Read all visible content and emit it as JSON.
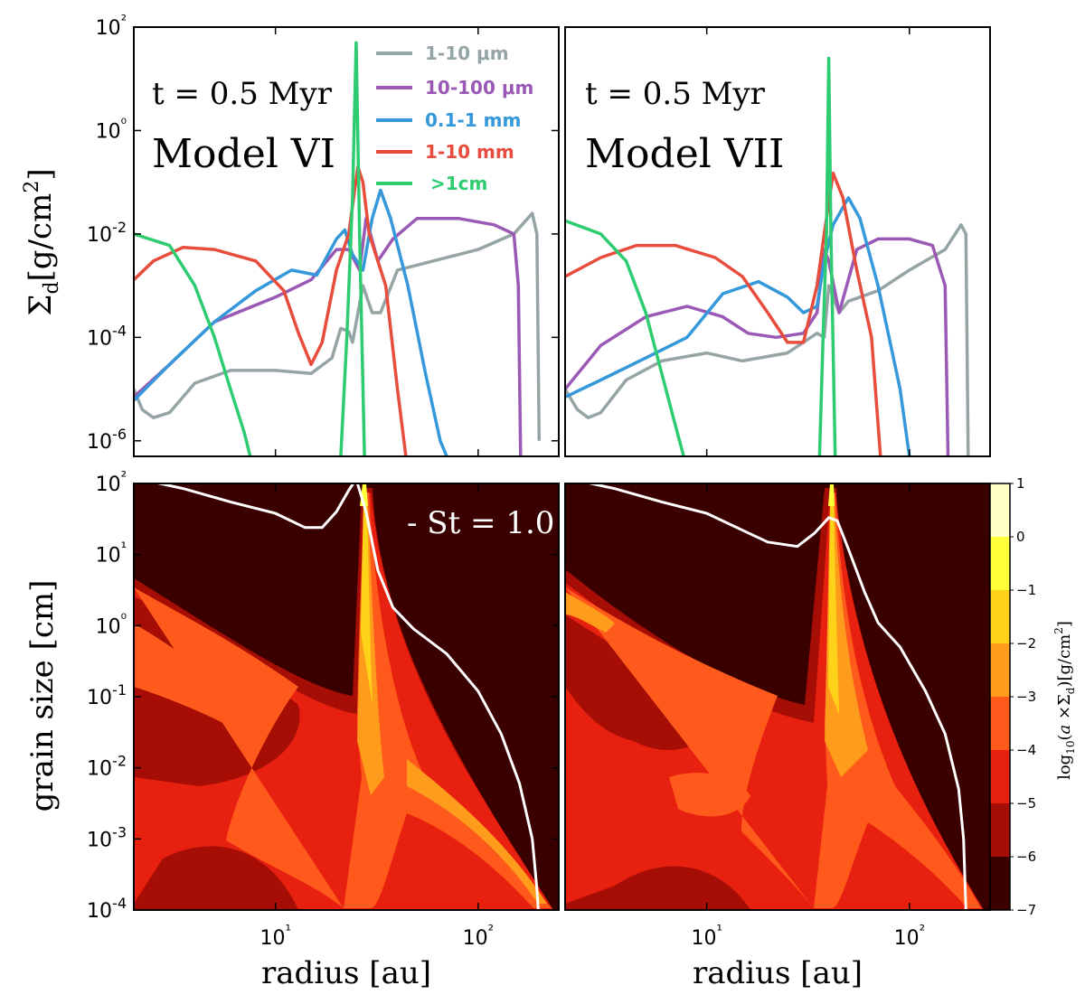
{
  "chart_data": [
    {
      "type": "line",
      "panel": "top-left",
      "annotation_time": "t = 0.5 Myr",
      "annotation_model": "Model VI",
      "ylabel": "Σd[g/cm²]",
      "x_scale": "log",
      "y_scale": "log",
      "xlim": [
        2,
        250
      ],
      "ylim": [
        5e-07,
        100
      ],
      "yticks": [
        "10²",
        "10⁰",
        "10-2",
        "10-4",
        "10-6"
      ],
      "legend": [
        {
          "label": "1-10 μm",
          "color": "#95a5a6"
        },
        {
          "label": "10-100 μm",
          "color": "#9b59b6"
        },
        {
          "label": "0.1-1 mm",
          "color": "#3498db"
        },
        {
          "label": "1-10 mm",
          "color": "#e74c3c"
        },
        {
          "label": ">1cm",
          "color": "#2ecc71"
        }
      ],
      "series": [
        {
          "name": "1-10 μm",
          "color": "#95a5a6",
          "points": [
            [
              2,
              1e-05
            ],
            [
              2.2,
              4e-06
            ],
            [
              2.5,
              2.8e-06
            ],
            [
              3,
              3.5e-06
            ],
            [
              4,
              1.3e-05
            ],
            [
              6,
              2.3e-05
            ],
            [
              10,
              2.3e-05
            ],
            [
              15,
              2e-05
            ],
            [
              19,
              4e-05
            ],
            [
              21,
              0.00015
            ],
            [
              23,
              0.00013
            ],
            [
              24,
              8e-05
            ],
            [
              27,
              0.001
            ],
            [
              30,
              0.0003
            ],
            [
              33,
              0.0003
            ],
            [
              40,
              0.002
            ],
            [
              60,
              0.003
            ],
            [
              100,
              0.005
            ],
            [
              150,
              0.01
            ],
            [
              185,
              0.025
            ],
            [
              195,
              0.01
            ],
            [
              200,
              1e-06
            ]
          ]
        },
        {
          "name": "10-100 μm",
          "color": "#9b59b6",
          "points": [
            [
              2,
              7e-06
            ],
            [
              3,
              3e-05
            ],
            [
              5,
              0.0002
            ],
            [
              10,
              0.0006
            ],
            [
              15,
              0.0013
            ],
            [
              20,
              0.005
            ],
            [
              23,
              0.005
            ],
            [
              26,
              0.002
            ],
            [
              28,
              0.02
            ],
            [
              32,
              0.003
            ],
            [
              38,
              0.008
            ],
            [
              50,
              0.02
            ],
            [
              80,
              0.02
            ],
            [
              120,
              0.015
            ],
            [
              150,
              0.01
            ],
            [
              158,
              0.001
            ],
            [
              162,
              5e-07
            ]
          ]
        },
        {
          "name": "0.1-1 mm",
          "color": "#3498db",
          "points": [
            [
              2,
              6e-06
            ],
            [
              3,
              3e-05
            ],
            [
              5,
              0.0002
            ],
            [
              8,
              0.0008
            ],
            [
              12,
              0.002
            ],
            [
              16,
              0.0016
            ],
            [
              20,
              0.008
            ],
            [
              22,
              0.012
            ],
            [
              24,
              0.004
            ],
            [
              27,
              0.002
            ],
            [
              30,
              0.02
            ],
            [
              33,
              0.07
            ],
            [
              37,
              0.02
            ],
            [
              45,
              0.001
            ],
            [
              55,
              2e-05
            ],
            [
              65,
              1e-06
            ],
            [
              70,
              5e-07
            ]
          ]
        },
        {
          "name": "1-10 mm",
          "color": "#e74c3c",
          "points": [
            [
              2,
              0.0013
            ],
            [
              2.5,
              0.003
            ],
            [
              3.5,
              0.0055
            ],
            [
              5,
              0.005
            ],
            [
              8,
              0.003
            ],
            [
              11,
              0.0008
            ],
            [
              13,
              0.00012
            ],
            [
              15,
              3e-05
            ],
            [
              17,
              8e-05
            ],
            [
              20,
              0.002
            ],
            [
              23,
              0.01
            ],
            [
              25.5,
              0.2
            ],
            [
              27,
              0.1
            ],
            [
              29,
              0.01
            ],
            [
              32,
              0.003
            ],
            [
              35,
              0.001
            ],
            [
              40,
              1e-05
            ],
            [
              44,
              5e-07
            ]
          ]
        },
        {
          "name": ">1cm",
          "color": "#2ecc71",
          "points": [
            [
              2,
              0.01
            ],
            [
              3,
              0.006
            ],
            [
              4,
              0.001
            ],
            [
              5,
              0.0001
            ],
            [
              6,
              1e-05
            ],
            [
              7,
              1.5e-06
            ],
            [
              7.5,
              5e-07
            ],
            null,
            [
              21,
              5e-07
            ],
            [
              22.5,
              0.0001
            ],
            [
              24,
              0.05
            ],
            [
              25,
              50
            ],
            [
              26,
              0.01
            ],
            [
              27.5,
              5e-07
            ]
          ]
        }
      ]
    },
    {
      "type": "line",
      "panel": "top-right",
      "annotation_time": "t = 0.5 Myr",
      "annotation_model": "Model VII",
      "x_scale": "log",
      "y_scale": "log",
      "xlim": [
        2,
        250
      ],
      "ylim": [
        5e-07,
        100
      ],
      "series": [
        {
          "name": "1-10 μm",
          "color": "#95a5a6",
          "points": [
            [
              2,
              1e-05
            ],
            [
              2.3,
              4e-06
            ],
            [
              2.6,
              2.8e-06
            ],
            [
              3,
              3.5e-06
            ],
            [
              4,
              1.5e-05
            ],
            [
              6,
              3.5e-05
            ],
            [
              10,
              5e-05
            ],
            [
              15,
              3.5e-05
            ],
            [
              25,
              5e-05
            ],
            [
              35,
              0.00012
            ],
            [
              38,
              0.0001
            ],
            [
              40,
              0.001
            ],
            [
              45,
              0.0003
            ],
            [
              50,
              0.0005
            ],
            [
              70,
              0.0008
            ],
            [
              100,
              0.002
            ],
            [
              150,
              0.005
            ],
            [
              180,
              0.015
            ],
            [
              190,
              0.01
            ],
            [
              195,
              5e-07
            ]
          ]
        },
        {
          "name": "10-100 μm",
          "color": "#9b59b6",
          "points": [
            [
              2,
              1e-05
            ],
            [
              3,
              7e-05
            ],
            [
              5,
              0.00025
            ],
            [
              8,
              0.0004
            ],
            [
              12,
              0.00025
            ],
            [
              16,
              0.00012
            ],
            [
              22,
              0.0001
            ],
            [
              30,
              0.00012
            ],
            [
              35,
              0.0003
            ],
            [
              38,
              0.005
            ],
            [
              40,
              0.003
            ],
            [
              45,
              0.0003
            ],
            [
              55,
              0.005
            ],
            [
              70,
              0.008
            ],
            [
              100,
              0.008
            ],
            [
              130,
              0.006
            ],
            [
              150,
              0.001
            ],
            [
              155,
              5e-07
            ]
          ]
        },
        {
          "name": "0.1-1 mm",
          "color": "#3498db",
          "points": [
            [
              2,
              7e-06
            ],
            [
              3,
              1.5e-05
            ],
            [
              5,
              4e-05
            ],
            [
              8,
              0.0001
            ],
            [
              12,
              0.0007
            ],
            [
              18,
              0.0012
            ],
            [
              25,
              0.0006
            ],
            [
              30,
              0.0003
            ],
            [
              35,
              0.0004
            ],
            [
              38,
              0.003
            ],
            [
              42,
              0.015
            ],
            [
              50,
              0.05
            ],
            [
              57,
              0.02
            ],
            [
              70,
              0.001
            ],
            [
              90,
              1e-05
            ],
            [
              100,
              5e-07
            ]
          ]
        },
        {
          "name": "1-10 mm",
          "color": "#e74c3c",
          "points": [
            [
              2,
              0.0015
            ],
            [
              3,
              0.0035
            ],
            [
              4.5,
              0.006
            ],
            [
              7,
              0.006
            ],
            [
              11,
              0.0035
            ],
            [
              15,
              0.0015
            ],
            [
              20,
              0.0003
            ],
            [
              25,
              8e-05
            ],
            [
              30,
              8e-05
            ],
            [
              35,
              0.001
            ],
            [
              38,
              0.01
            ],
            [
              42,
              0.15
            ],
            [
              47,
              0.05
            ],
            [
              55,
              0.002
            ],
            [
              65,
              0.0001
            ],
            [
              72,
              5e-07
            ]
          ]
        },
        {
          "name": ">1cm",
          "color": "#2ecc71",
          "points": [
            [
              2,
              0.018
            ],
            [
              3,
              0.01
            ],
            [
              4,
              0.003
            ],
            [
              5,
              0.0003
            ],
            [
              6,
              2e-05
            ],
            [
              7,
              2e-06
            ],
            [
              7.7,
              5e-07
            ],
            null,
            [
              36,
              5e-07
            ],
            [
              37.5,
              0.0001
            ],
            [
              39,
              0.01
            ],
            [
              40,
              25
            ],
            [
              41,
              0.01
            ],
            [
              43,
              5e-07
            ]
          ]
        }
      ]
    },
    {
      "type": "heatmap",
      "panel": "bottom-left",
      "annotation": "- St = 1.0",
      "xlabel": "radius [au]",
      "ylabel": "grain size [cm]",
      "x_scale": "log",
      "y_scale": "log",
      "xlim": [
        2,
        250
      ],
      "ylim": [
        0.0001,
        100
      ],
      "xticks": [
        "10¹",
        "10²"
      ],
      "yticks": [
        "10²",
        "10¹",
        "10⁰",
        "10-1",
        "10-2",
        "10-3",
        "10-4"
      ],
      "st1_curve": [
        [
          2,
          120
        ],
        [
          3.5,
          85
        ],
        [
          6,
          55
        ],
        [
          10,
          38
        ],
        [
          14,
          24
        ],
        [
          17,
          24
        ],
        [
          20,
          40
        ],
        [
          23,
          80
        ],
        [
          25,
          115
        ],
        [
          28,
          40
        ],
        [
          32,
          6
        ],
        [
          38,
          1.8
        ],
        [
          48,
          0.9
        ],
        [
          70,
          0.4
        ],
        [
          100,
          0.12
        ],
        [
          130,
          0.03
        ],
        [
          160,
          0.006
        ],
        [
          185,
          0.001
        ],
        [
          195,
          0.0002
        ],
        [
          198,
          0.0001
        ]
      ],
      "regions_note": "Contour of log10(a×Σd): dust concentrated below ~1 cm, strong filament at ~25 au"
    },
    {
      "type": "heatmap",
      "panel": "bottom-right",
      "x_scale": "log",
      "y_scale": "log",
      "xlim": [
        2,
        250
      ],
      "ylim": [
        0.0001,
        100
      ],
      "xlabel": "radius [au]",
      "st1_curve": [
        [
          2,
          120
        ],
        [
          3.5,
          85
        ],
        [
          6,
          55
        ],
        [
          10,
          38
        ],
        [
          15,
          22
        ],
        [
          20,
          15
        ],
        [
          28,
          13
        ],
        [
          34,
          20
        ],
        [
          40,
          33
        ],
        [
          44,
          30
        ],
        [
          50,
          12
        ],
        [
          60,
          3
        ],
        [
          70,
          1.1
        ],
        [
          90,
          0.5
        ],
        [
          120,
          0.12
        ],
        [
          150,
          0.03
        ],
        [
          175,
          0.005
        ],
        [
          185,
          0.001
        ],
        [
          190,
          0.0001
        ]
      ],
      "regions_note": "Filament at ~40 au"
    }
  ],
  "colorbar": {
    "label": "log10(a ×Σd)[g/cm²]",
    "ticks": [
      "1",
      "0",
      "−1",
      "−2",
      "−3",
      "−4",
      "−5",
      "−6",
      "−7"
    ],
    "levels": [
      {
        "from": 0,
        "to": 1,
        "color": "#ffffc8"
      },
      {
        "from": -1,
        "to": 0,
        "color": "#ffff3a"
      },
      {
        "from": -2,
        "to": -1,
        "color": "#ffd21a"
      },
      {
        "from": -3,
        "to": -2,
        "color": "#ff9c1c"
      },
      {
        "from": -4,
        "to": -3,
        "color": "#ff5a1c"
      },
      {
        "from": -5,
        "to": -4,
        "color": "#e8200f"
      },
      {
        "from": -6,
        "to": -5,
        "color": "#a50d05"
      },
      {
        "from": -7,
        "to": -6,
        "color": "#3a0000"
      }
    ]
  }
}
